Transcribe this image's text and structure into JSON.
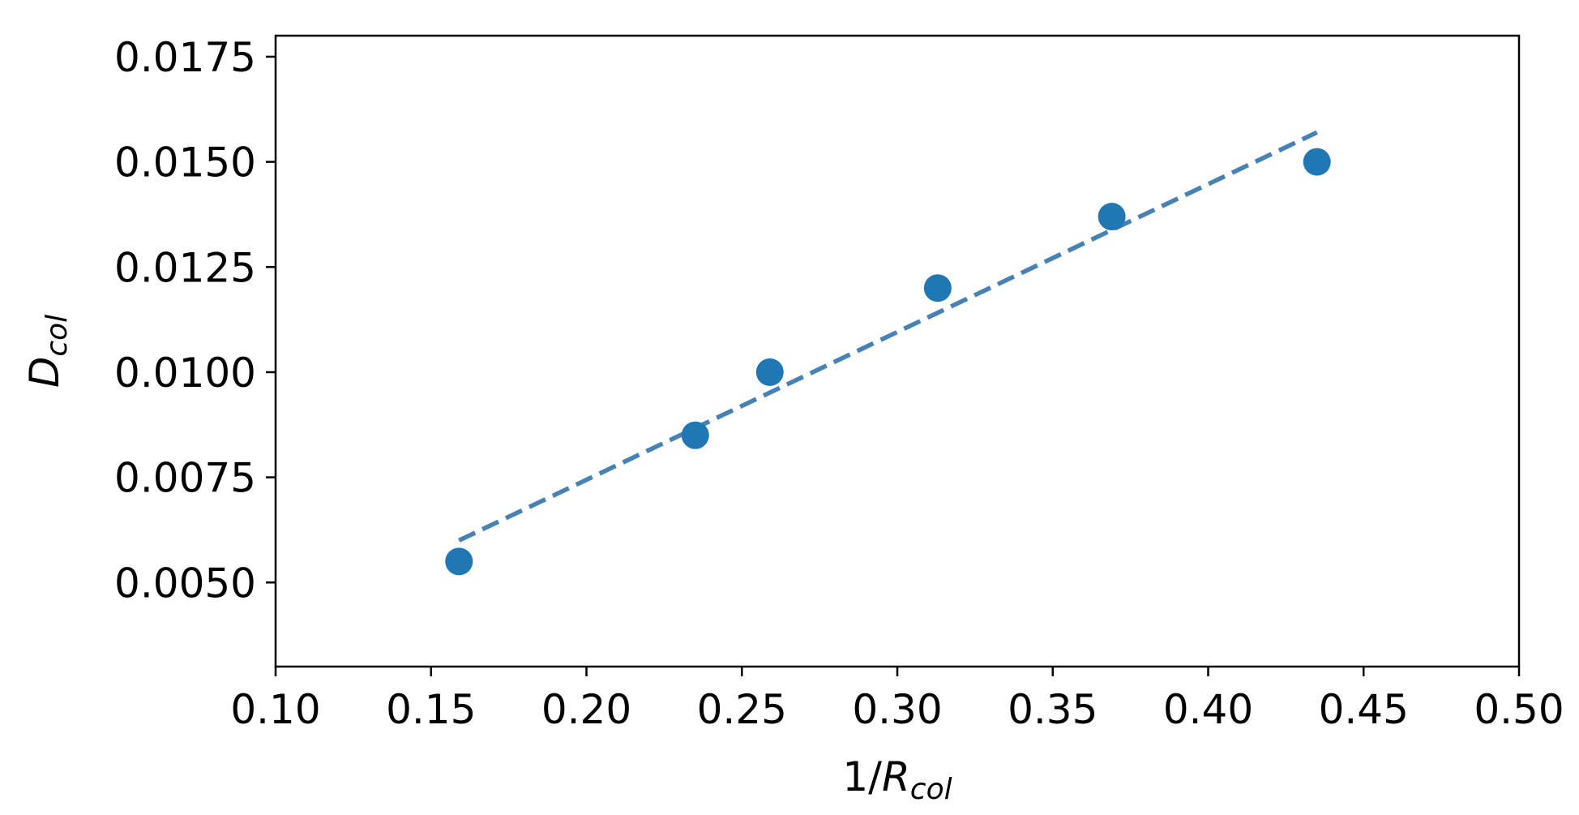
{
  "chart_data": {
    "type": "scatter",
    "xlabel": {
      "main": "1/",
      "italic": "R",
      "sub": "col"
    },
    "ylabel": {
      "italic": "D",
      "sub": "col"
    },
    "xlim": [
      0.1,
      0.5
    ],
    "ylim": [
      0.003,
      0.018
    ],
    "xticks": [
      0.1,
      0.15,
      0.2,
      0.25,
      0.3,
      0.35,
      0.4,
      0.45,
      0.5
    ],
    "xtick_labels": [
      "0.10",
      "0.15",
      "0.20",
      "0.25",
      "0.30",
      "0.35",
      "0.40",
      "0.45",
      "0.50"
    ],
    "yticks": [
      0.005,
      0.0075,
      0.01,
      0.0125,
      0.015,
      0.0175
    ],
    "ytick_labels": [
      "0.0050",
      "0.0075",
      "0.0100",
      "0.0125",
      "0.0150",
      "0.0175"
    ],
    "grid": false,
    "series": [
      {
        "kind": "points",
        "color": "#1f77b4",
        "x": [
          0.159,
          0.235,
          0.259,
          0.313,
          0.369,
          0.435
        ],
        "y": [
          0.0055,
          0.0085,
          0.01,
          0.012,
          0.0137,
          0.015
        ]
      },
      {
        "kind": "dashed-line",
        "color": "#4682b4",
        "x": [
          0.159,
          0.435
        ],
        "y": [
          0.006,
          0.0157
        ]
      }
    ]
  }
}
